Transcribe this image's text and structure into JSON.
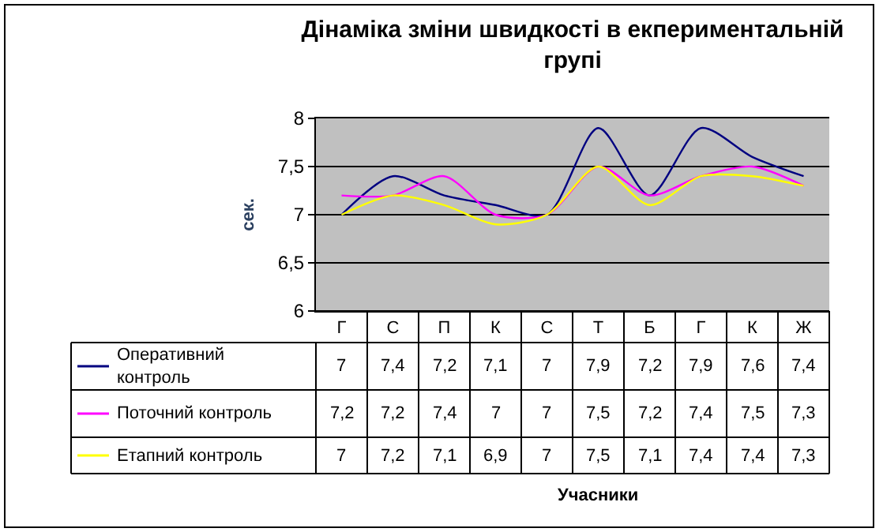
{
  "chart_data": {
    "type": "line",
    "title": "Дінаміка зміни швидкості в екпериментальній групі",
    "annotations": [
      "Учасники"
    ],
    "ylabel": "сек.",
    "categories": [
      "Г",
      "С",
      "П",
      "К",
      "С",
      "Т",
      "Б",
      "Г",
      "К",
      "Ж"
    ],
    "series": [
      {
        "name": "Оперативний контроль",
        "color": "#000080",
        "values": [
          7,
          7.4,
          7.2,
          7.1,
          7,
          7.9,
          7.2,
          7.9,
          7.6,
          7.4
        ],
        "value_labels": [
          "7",
          "7,4",
          "7,2",
          "7,1",
          "7",
          "7,9",
          "7,2",
          "7,9",
          "7,6",
          "7,4"
        ]
      },
      {
        "name": "Поточний контроль",
        "color": "#ff00ff",
        "values": [
          7.2,
          7.2,
          7.4,
          7,
          7,
          7.5,
          7.2,
          7.4,
          7.5,
          7.3
        ],
        "value_labels": [
          "7,2",
          "7,2",
          "7,4",
          "7",
          "7",
          "7,5",
          "7,2",
          "7,4",
          "7,5",
          "7,3"
        ]
      },
      {
        "name": "Етапний контроль",
        "color": "#ffff00",
        "values": [
          7,
          7.2,
          7.1,
          6.9,
          7,
          7.5,
          7.1,
          7.4,
          7.4,
          7.3
        ],
        "value_labels": [
          "7",
          "7,2",
          "7,1",
          "6,9",
          "7",
          "7,5",
          "7,1",
          "7,4",
          "7,4",
          "7,3"
        ]
      }
    ],
    "ylim": [
      6,
      8
    ],
    "yticks": [
      6,
      {
        "value": 6.5,
        "label": "6,5"
      },
      7,
      {
        "value": 7.5,
        "label": "7,5"
      },
      8
    ],
    "grid": "y",
    "legend": "bottom left",
    "marker": "none",
    "line_style": "solid"
  }
}
